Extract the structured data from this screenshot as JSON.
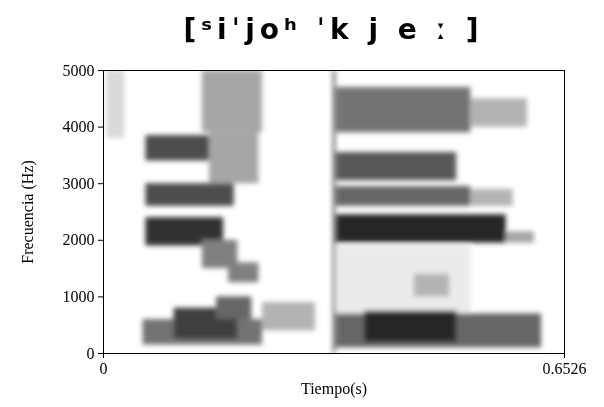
{
  "chart_data": {
    "type": "spectrogram",
    "title": "[ˢiˈjoʰ ˈk j e ː ]",
    "x_label": "Tiempo(s)",
    "y_label": "Frecuencia (Hz)",
    "xlim": [
      0,
      0.6526
    ],
    "xticks": [
      0,
      0.6526
    ],
    "ylim": [
      0,
      5000
    ],
    "yticks": [
      0,
      1000,
      2000,
      3000,
      4000,
      5000
    ],
    "grid": false,
    "color": "#000000",
    "cells": [
      {
        "t0": 0.005,
        "t1": 0.03,
        "f0": 3800,
        "f1": 5000,
        "value": 0.15
      },
      {
        "t0": 0.056,
        "t1": 0.225,
        "f0": 150,
        "f1": 600,
        "value": 0.55
      },
      {
        "t0": 0.1,
        "t1": 0.19,
        "f0": 250,
        "f1": 800,
        "value": 0.75
      },
      {
        "t0": 0.16,
        "t1": 0.21,
        "f0": 600,
        "f1": 1000,
        "value": 0.6
      },
      {
        "t0": 0.177,
        "t1": 0.22,
        "f0": 1250,
        "f1": 1600,
        "value": 0.5
      },
      {
        "t0": 0.06,
        "t1": 0.17,
        "f0": 1900,
        "f1": 2400,
        "value": 0.8
      },
      {
        "t0": 0.14,
        "t1": 0.19,
        "f0": 1500,
        "f1": 2000,
        "value": 0.5
      },
      {
        "t0": 0.06,
        "t1": 0.185,
        "f0": 2600,
        "f1": 3000,
        "value": 0.7
      },
      {
        "t0": 0.06,
        "t1": 0.155,
        "f0": 3400,
        "f1": 3850,
        "value": 0.7
      },
      {
        "t0": 0.14,
        "t1": 0.225,
        "f0": 3900,
        "f1": 5000,
        "value": 0.35
      },
      {
        "t0": 0.15,
        "t1": 0.22,
        "f0": 3000,
        "f1": 3900,
        "value": 0.35
      },
      {
        "t0": 0.225,
        "t1": 0.3,
        "f0": 400,
        "f1": 900,
        "value": 0.3
      },
      {
        "t0": 0.325,
        "t1": 0.329,
        "f0": 0,
        "f1": 5000,
        "value": 0.6
      },
      {
        "t0": 0.33,
        "t1": 0.52,
        "f0": 700,
        "f1": 1900,
        "value": 0.08
      },
      {
        "t0": 0.33,
        "t1": 0.62,
        "f0": 100,
        "f1": 700,
        "value": 0.6
      },
      {
        "t0": 0.37,
        "t1": 0.5,
        "f0": 200,
        "f1": 750,
        "value": 0.85
      },
      {
        "t0": 0.33,
        "t1": 0.57,
        "f0": 1950,
        "f1": 2450,
        "value": 0.85
      },
      {
        "t0": 0.33,
        "t1": 0.52,
        "f0": 2600,
        "f1": 2950,
        "value": 0.6
      },
      {
        "t0": 0.33,
        "t1": 0.5,
        "f0": 3050,
        "f1": 3550,
        "value": 0.65
      },
      {
        "t0": 0.33,
        "t1": 0.52,
        "f0": 3900,
        "f1": 4700,
        "value": 0.55
      },
      {
        "t0": 0.52,
        "t1": 0.6,
        "f0": 4000,
        "f1": 4500,
        "value": 0.3
      },
      {
        "t0": 0.57,
        "t1": 0.61,
        "f0": 1950,
        "f1": 2150,
        "value": 0.35
      },
      {
        "t0": 0.44,
        "t1": 0.49,
        "f0": 1000,
        "f1": 1400,
        "value": 0.3
      },
      {
        "t0": 0.52,
        "t1": 0.58,
        "f0": 2600,
        "f1": 2900,
        "value": 0.3
      }
    ]
  }
}
